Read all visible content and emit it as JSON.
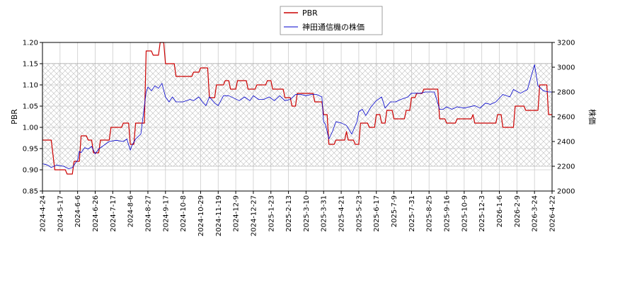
{
  "chart_data": {
    "type": "line",
    "legend": {
      "placement": "top-center",
      "entries": [
        "PBR",
        "神田通信機の株価"
      ]
    },
    "grid": true,
    "y_left": {
      "label": "PBR",
      "range": [
        0.85,
        1.2
      ],
      "ticks": [
        "0.85",
        "0.90",
        "0.95",
        "1.00",
        "1.05",
        "1.10",
        "1.15",
        "1.20"
      ]
    },
    "y_right": {
      "label": "株価",
      "range": [
        2000,
        3200
      ],
      "ticks": [
        "2000",
        "2200",
        "2400",
        "2600",
        "2800",
        "3000",
        "3200"
      ]
    },
    "x_ticks": [
      "2024-4-24",
      "2024-5-17",
      "2024-6-6",
      "2024-6-26",
      "2024-7-17",
      "2024-8-6",
      "2024-8-27",
      "2024-9-17",
      "2024-10-8",
      "2024-10-29",
      "2024-11-19",
      "2024-12-9",
      "2024-12-27",
      "2025-1-23",
      "2025-2-13",
      "2025-3-10",
      "2025-3-31",
      "2025-4-21",
      "2025-5-23",
      "2025-6-17",
      "2025-7-9",
      "2025-7-31",
      "2025-8-25",
      "2025-9-16",
      "2025-10-9",
      "2025-12-3",
      "2026-1-6",
      "2026-2-9",
      "2026-3-24",
      "2026-4-22"
    ],
    "shaded_band": {
      "axis": "right",
      "range": [
        2200,
        3030
      ]
    },
    "series": [
      {
        "name": "PBR",
        "axis": "left",
        "color": "#cc0000",
        "points": [
          [
            0,
            0.97
          ],
          [
            0.5,
            0.97
          ],
          [
            0.7,
            0.9
          ],
          [
            1.3,
            0.9
          ],
          [
            1.4,
            0.89
          ],
          [
            1.7,
            0.89
          ],
          [
            1.8,
            0.92
          ],
          [
            2.1,
            0.92
          ],
          [
            2.2,
            0.98
          ],
          [
            2.5,
            0.98
          ],
          [
            2.6,
            0.97
          ],
          [
            2.8,
            0.97
          ],
          [
            2.9,
            0.94
          ],
          [
            3.2,
            0.94
          ],
          [
            3.3,
            0.97
          ],
          [
            3.8,
            0.97
          ],
          [
            3.9,
            1.0
          ],
          [
            4.5,
            1.0
          ],
          [
            4.6,
            1.01
          ],
          [
            4.9,
            1.01
          ],
          [
            5.0,
            0.96
          ],
          [
            5.2,
            0.96
          ],
          [
            5.3,
            1.01
          ],
          [
            5.8,
            1.01
          ],
          [
            5.9,
            1.18
          ],
          [
            6.2,
            1.18
          ],
          [
            6.3,
            1.17
          ],
          [
            6.6,
            1.17
          ],
          [
            6.7,
            1.2
          ],
          [
            6.9,
            1.2
          ],
          [
            7.0,
            1.15
          ],
          [
            7.5,
            1.15
          ],
          [
            7.6,
            1.12
          ],
          [
            8.5,
            1.12
          ],
          [
            8.6,
            1.13
          ],
          [
            8.9,
            1.13
          ],
          [
            9.0,
            1.14
          ],
          [
            9.4,
            1.14
          ],
          [
            9.5,
            1.07
          ],
          [
            9.8,
            1.07
          ],
          [
            9.9,
            1.1
          ],
          [
            10.3,
            1.1
          ],
          [
            10.4,
            1.11
          ],
          [
            10.6,
            1.11
          ],
          [
            10.7,
            1.09
          ],
          [
            11.0,
            1.09
          ],
          [
            11.1,
            1.11
          ],
          [
            11.6,
            1.11
          ],
          [
            11.7,
            1.09
          ],
          [
            12.1,
            1.09
          ],
          [
            12.2,
            1.1
          ],
          [
            12.7,
            1.1
          ],
          [
            12.8,
            1.11
          ],
          [
            13.0,
            1.11
          ],
          [
            13.1,
            1.09
          ],
          [
            13.7,
            1.09
          ],
          [
            13.8,
            1.07
          ],
          [
            14.1,
            1.07
          ],
          [
            14.2,
            1.05
          ],
          [
            14.4,
            1.05
          ],
          [
            14.5,
            1.08
          ],
          [
            15.4,
            1.08
          ],
          [
            15.5,
            1.06
          ],
          [
            15.9,
            1.06
          ],
          [
            16.0,
            1.03
          ],
          [
            16.2,
            1.03
          ],
          [
            16.3,
            0.96
          ],
          [
            16.6,
            0.96
          ],
          [
            16.7,
            0.97
          ],
          [
            17.2,
            0.97
          ],
          [
            17.3,
            0.99
          ],
          [
            17.4,
            0.97
          ],
          [
            17.7,
            0.97
          ],
          [
            17.8,
            0.96
          ],
          [
            18.0,
            0.96
          ],
          [
            18.1,
            1.01
          ],
          [
            18.5,
            1.01
          ],
          [
            18.6,
            1.0
          ],
          [
            18.9,
            1.0
          ],
          [
            19.0,
            1.03
          ],
          [
            19.2,
            1.03
          ],
          [
            19.3,
            1.01
          ],
          [
            19.5,
            1.01
          ],
          [
            19.6,
            1.04
          ],
          [
            19.9,
            1.04
          ],
          [
            20.0,
            1.02
          ],
          [
            20.6,
            1.02
          ],
          [
            20.7,
            1.04
          ],
          [
            20.9,
            1.04
          ],
          [
            21.0,
            1.07
          ],
          [
            21.2,
            1.07
          ],
          [
            21.3,
            1.08
          ],
          [
            21.6,
            1.08
          ],
          [
            21.7,
            1.09
          ],
          [
            22.5,
            1.09
          ],
          [
            22.6,
            1.02
          ],
          [
            22.9,
            1.02
          ],
          [
            23.0,
            1.01
          ],
          [
            23.5,
            1.01
          ],
          [
            23.6,
            1.02
          ],
          [
            24.4,
            1.02
          ],
          [
            24.5,
            1.03
          ],
          [
            24.6,
            1.01
          ],
          [
            25.8,
            1.01
          ],
          [
            25.9,
            1.03
          ],
          [
            26.1,
            1.03
          ],
          [
            26.2,
            1.0
          ],
          [
            26.8,
            1.0
          ],
          [
            26.9,
            1.05
          ],
          [
            27.4,
            1.05
          ],
          [
            27.5,
            1.04
          ],
          [
            28.2,
            1.04
          ],
          [
            28.3,
            1.1
          ],
          [
            28.7,
            1.1
          ],
          [
            28.8,
            1.03
          ],
          [
            29.0,
            1.03
          ]
        ]
      },
      {
        "name": "神田通信機の株価",
        "axis": "right",
        "color": "#0000cc",
        "points": [
          [
            0,
            2220
          ],
          [
            0.3,
            2210
          ],
          [
            0.5,
            2190
          ],
          [
            0.8,
            2210
          ],
          [
            1.2,
            2200
          ],
          [
            1.5,
            2180
          ],
          [
            1.7,
            2190
          ],
          [
            2.0,
            2250
          ],
          [
            2.1,
            2320
          ],
          [
            2.2,
            2310
          ],
          [
            2.4,
            2350
          ],
          [
            2.6,
            2340
          ],
          [
            2.8,
            2360
          ],
          [
            3.0,
            2300
          ],
          [
            3.2,
            2340
          ],
          [
            3.5,
            2370
          ],
          [
            3.8,
            2400
          ],
          [
            4.2,
            2410
          ],
          [
            4.6,
            2400
          ],
          [
            4.8,
            2420
          ],
          [
            5.0,
            2330
          ],
          [
            5.1,
            2370
          ],
          [
            5.3,
            2420
          ],
          [
            5.6,
            2460
          ],
          [
            5.9,
            2800
          ],
          [
            6.0,
            2840
          ],
          [
            6.2,
            2810
          ],
          [
            6.4,
            2850
          ],
          [
            6.6,
            2830
          ],
          [
            6.8,
            2870
          ],
          [
            7.0,
            2760
          ],
          [
            7.2,
            2720
          ],
          [
            7.4,
            2760
          ],
          [
            7.6,
            2720
          ],
          [
            8.0,
            2720
          ],
          [
            8.4,
            2740
          ],
          [
            8.6,
            2730
          ],
          [
            8.9,
            2760
          ],
          [
            9.1,
            2720
          ],
          [
            9.3,
            2690
          ],
          [
            9.5,
            2760
          ],
          [
            9.8,
            2710
          ],
          [
            10.0,
            2690
          ],
          [
            10.3,
            2770
          ],
          [
            10.6,
            2770
          ],
          [
            10.9,
            2750
          ],
          [
            11.2,
            2730
          ],
          [
            11.5,
            2760
          ],
          [
            11.8,
            2730
          ],
          [
            12.0,
            2770
          ],
          [
            12.3,
            2740
          ],
          [
            12.6,
            2740
          ],
          [
            12.9,
            2760
          ],
          [
            13.2,
            2730
          ],
          [
            13.5,
            2770
          ],
          [
            13.8,
            2730
          ],
          [
            14.1,
            2740
          ],
          [
            14.4,
            2780
          ],
          [
            14.7,
            2780
          ],
          [
            15.0,
            2770
          ],
          [
            15.3,
            2780
          ],
          [
            15.6,
            2780
          ],
          [
            15.9,
            2760
          ],
          [
            16.0,
            2560
          ],
          [
            16.1,
            2540
          ],
          [
            16.3,
            2420
          ],
          [
            16.5,
            2480
          ],
          [
            16.7,
            2560
          ],
          [
            17.0,
            2550
          ],
          [
            17.3,
            2530
          ],
          [
            17.6,
            2460
          ],
          [
            17.9,
            2560
          ],
          [
            18.0,
            2640
          ],
          [
            18.2,
            2660
          ],
          [
            18.4,
            2610
          ],
          [
            18.7,
            2680
          ],
          [
            19.0,
            2730
          ],
          [
            19.3,
            2760
          ],
          [
            19.5,
            2670
          ],
          [
            19.8,
            2720
          ],
          [
            20.1,
            2720
          ],
          [
            20.4,
            2740
          ],
          [
            20.8,
            2760
          ],
          [
            21.0,
            2790
          ],
          [
            21.3,
            2790
          ],
          [
            21.5,
            2790
          ],
          [
            21.8,
            2800
          ],
          [
            22.0,
            2800
          ],
          [
            22.3,
            2800
          ],
          [
            22.6,
            2660
          ],
          [
            22.8,
            2660
          ],
          [
            23.0,
            2680
          ],
          [
            23.3,
            2660
          ],
          [
            23.6,
            2680
          ],
          [
            24.0,
            2670
          ],
          [
            24.3,
            2680
          ],
          [
            24.6,
            2690
          ],
          [
            24.9,
            2670
          ],
          [
            25.2,
            2710
          ],
          [
            25.5,
            2700
          ],
          [
            25.8,
            2720
          ],
          [
            26.2,
            2780
          ],
          [
            26.6,
            2760
          ],
          [
            26.8,
            2820
          ],
          [
            27.2,
            2790
          ],
          [
            27.6,
            2820
          ],
          [
            28.0,
            3020
          ],
          [
            28.2,
            2850
          ],
          [
            28.5,
            2810
          ],
          [
            28.8,
            2800
          ],
          [
            29.0,
            2800
          ]
        ]
      }
    ]
  }
}
